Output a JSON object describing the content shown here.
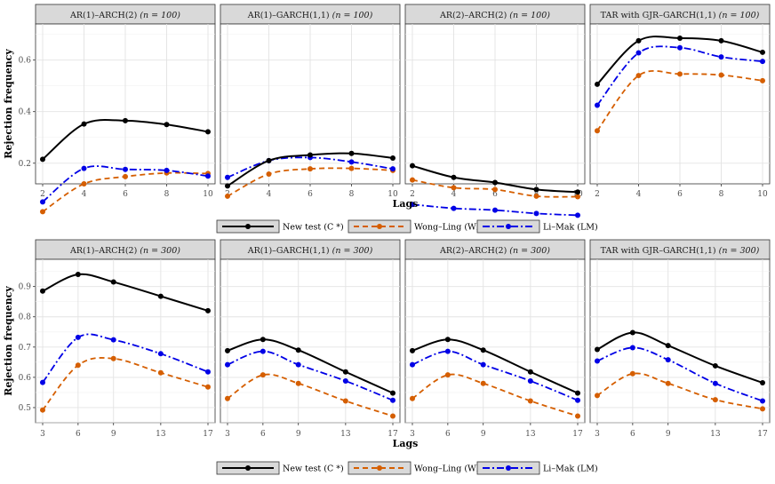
{
  "chart_data": {
    "type": "line",
    "xlabel": "Lags",
    "ylabel": "Rejection frequency",
    "series_legend": [
      {
        "key": "C",
        "name": "New test (C *)",
        "color": "#000000",
        "dash": "solid"
      },
      {
        "key": "WL",
        "name": "Wong–Ling (WL)",
        "color": "#D55E00",
        "dash": "dashed"
      },
      {
        "key": "LM",
        "name": "Li–Mak (LM)",
        "color": "#0000E6",
        "dash": "dotdash"
      }
    ],
    "rows": [
      {
        "n_label": "n = 100",
        "x": [
          2,
          4,
          6,
          8,
          10
        ],
        "xlim": [
          2,
          10
        ],
        "ylim": [
          0.12,
          0.74
        ],
        "yticks": [
          0.2,
          0.4,
          0.6
        ],
        "ytick_labels": [
          "0.2",
          "0.4",
          "0.6"
        ],
        "panels": [
          {
            "title": "AR(1)–ARCH(2)",
            "title_suffix": "(n = 100)",
            "C": [
              0.215,
              0.352,
              0.365,
              0.35,
              0.322
            ],
            "WL": [
              0.012,
              0.12,
              0.148,
              0.162,
              0.16
            ],
            "LM": [
              0.05,
              0.18,
              0.176,
              0.172,
              0.15
            ]
          },
          {
            "title": "AR(1)–GARCH(1,1)",
            "title_suffix": "(n = 100)",
            "C": [
              0.112,
              0.21,
              0.232,
              0.238,
              0.22
            ],
            "WL": [
              0.072,
              0.158,
              0.178,
              0.18,
              0.172
            ],
            "LM": [
              0.145,
              0.21,
              0.222,
              0.205,
              0.178
            ]
          },
          {
            "title": "AR(2)–ARCH(2)",
            "title_suffix": "(n = 100)",
            "C": [
              0.19,
              0.145,
              0.125,
              0.098,
              0.088
            ],
            "WL": [
              0.135,
              0.105,
              0.098,
              0.072,
              0.07
            ],
            "LM": [
              0.04,
              0.025,
              0.018,
              0.005,
              -0.002
            ]
          },
          {
            "title": "TAR with GJR–GARCH(1,1)",
            "title_suffix": "(n = 100)",
            "C": [
              0.506,
              0.675,
              0.685,
              0.675,
              0.63
            ],
            "WL": [
              0.326,
              0.54,
              0.546,
              0.542,
              0.52
            ],
            "LM": [
              0.425,
              0.628,
              0.648,
              0.612,
              0.595
            ]
          }
        ]
      },
      {
        "n_label": "n = 300",
        "x": [
          3,
          6,
          9,
          13,
          17
        ],
        "xlim": [
          3,
          17
        ],
        "ylim": [
          0.45,
          0.99
        ],
        "yticks": [
          0.5,
          0.6,
          0.7,
          0.8,
          0.9
        ],
        "ytick_labels": [
          "0.5",
          "0.6",
          "0.7",
          "0.8",
          "0.9"
        ],
        "panels": [
          {
            "title": "AR(1)–ARCH(2)",
            "title_suffix": "(n = 300)",
            "C": [
              0.885,
              0.94,
              0.915,
              0.868,
              0.82
            ],
            "WL": [
              0.492,
              0.64,
              0.662,
              0.615,
              0.568
            ],
            "LM": [
              0.583,
              0.732,
              0.724,
              0.678,
              0.618
            ]
          },
          {
            "title": "AR(1)–GARCH(1,1)",
            "title_suffix": "(n = 300)",
            "C": [
              0.688,
              0.725,
              0.69,
              0.618,
              0.548
            ],
            "WL": [
              0.53,
              0.608,
              0.58,
              0.522,
              0.472
            ],
            "LM": [
              0.642,
              0.686,
              0.642,
              0.588,
              0.524
            ]
          },
          {
            "title": "AR(2)–ARCH(2)",
            "title_suffix": "(n = 300)",
            "C": [
              0.688,
              0.725,
              0.69,
              0.618,
              0.548
            ],
            "WL": [
              0.53,
              0.608,
              0.58,
              0.522,
              0.472
            ],
            "LM": [
              0.642,
              0.686,
              0.642,
              0.588,
              0.524
            ]
          },
          {
            "title": "TAR with GJR–GARCH(1,1)",
            "title_suffix": "(n = 300)",
            "C": [
              0.692,
              0.748,
              0.705,
              0.638,
              0.582
            ],
            "WL": [
              0.54,
              0.612,
              0.58,
              0.526,
              0.496
            ],
            "LM": [
              0.654,
              0.698,
              0.658,
              0.58,
              0.522
            ]
          }
        ]
      }
    ]
  }
}
